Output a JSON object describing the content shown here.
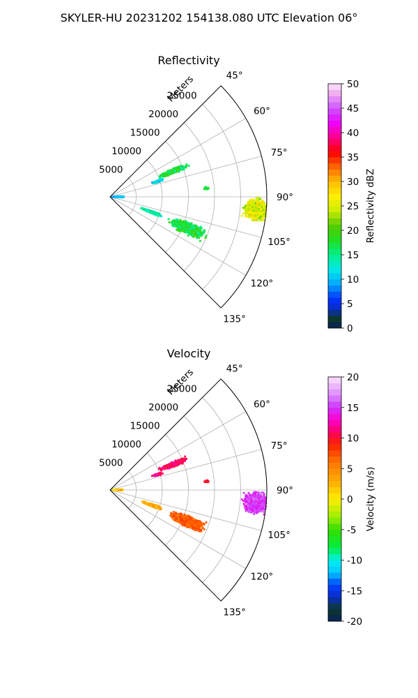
{
  "figure": {
    "title": "SKYLER-HU  20231202  154138.080 UTC Elevation 06°"
  },
  "chart_data": [
    {
      "type": "heatmap",
      "title": "Reflectivity",
      "radial_label": "Meters",
      "radial_ticks": [
        5000,
        10000,
        15000,
        20000,
        25000
      ],
      "radial_range": [
        0,
        30000
      ],
      "azimuth_ticks": [
        "45°",
        "60°",
        "75°",
        "90°",
        "105°",
        "120°",
        "135°"
      ],
      "azimuth_range_deg": [
        45,
        135
      ],
      "grid": true,
      "colorbar": {
        "label": "Reflectivity dBZ",
        "range": [
          0,
          50
        ],
        "ticks": [
          0,
          5,
          10,
          15,
          20,
          25,
          30,
          35,
          40,
          45,
          50
        ],
        "stops": [
          {
            "v": 0,
            "c": "#0b1e5a"
          },
          {
            "v": 2,
            "c": "#0b3a2a"
          },
          {
            "v": 4,
            "c": "#0a2cc9"
          },
          {
            "v": 6,
            "c": "#0033ff"
          },
          {
            "v": 9,
            "c": "#00a8ff"
          },
          {
            "v": 12,
            "c": "#00e8e8"
          },
          {
            "v": 15,
            "c": "#00f08a"
          },
          {
            "v": 18,
            "c": "#22dd22"
          },
          {
            "v": 21,
            "c": "#55cc00"
          },
          {
            "v": 24,
            "c": "#ccee00"
          },
          {
            "v": 27,
            "c": "#ffee00"
          },
          {
            "v": 30,
            "c": "#ffbb00"
          },
          {
            "v": 33,
            "c": "#ff6600"
          },
          {
            "v": 36,
            "c": "#ff0000"
          },
          {
            "v": 39,
            "c": "#ff0088"
          },
          {
            "v": 42,
            "c": "#ee00ff"
          },
          {
            "v": 45,
            "c": "#cc55ff"
          },
          {
            "v": 48,
            "c": "#f0aaf0"
          },
          {
            "v": 50,
            "c": "#fce8fc"
          }
        ]
      },
      "echoes": [
        {
          "az": 68,
          "r": 13000,
          "len": 6500,
          "wid": 5,
          "value": 17,
          "spread": 4
        },
        {
          "az": 72,
          "r": 9500,
          "len": 2500,
          "wid": 3,
          "value": 12,
          "spread": 4
        },
        {
          "az": 95,
          "r": 28000,
          "len": 5500,
          "wid": 10,
          "value": 25,
          "spread": 4
        },
        {
          "az": 112,
          "r": 16000,
          "len": 8000,
          "wid": 9,
          "value": 17,
          "spread": 4
        },
        {
          "az": 110,
          "r": 8500,
          "len": 5000,
          "wid": 4,
          "value": 14,
          "spread": 3
        },
        {
          "az": 90,
          "r": 1500,
          "len": 2500,
          "wid": 8,
          "value": 10,
          "spread": 3
        },
        {
          "az": 85,
          "r": 18500,
          "len": 1200,
          "wid": 2,
          "value": 17,
          "spread": 2
        }
      ]
    },
    {
      "type": "heatmap",
      "title": "Velocity",
      "radial_label": "Meters",
      "radial_ticks": [
        5000,
        10000,
        15000,
        20000,
        25000
      ],
      "radial_range": [
        0,
        30000
      ],
      "azimuth_ticks": [
        "45°",
        "60°",
        "75°",
        "90°",
        "105°",
        "120°",
        "135°"
      ],
      "azimuth_range_deg": [
        45,
        135
      ],
      "grid": true,
      "colorbar": {
        "label": "Velocity (m/s)",
        "range": [
          -20,
          20
        ],
        "ticks": [
          -20,
          -15,
          -10,
          -5,
          0,
          5,
          10,
          15,
          20
        ],
        "stops": [
          {
            "v": -20,
            "c": "#0b1e5a"
          },
          {
            "v": -18,
            "c": "#0b3a2a"
          },
          {
            "v": -16,
            "c": "#0a2cc9"
          },
          {
            "v": -14,
            "c": "#0044ff"
          },
          {
            "v": -12,
            "c": "#00c8ff"
          },
          {
            "v": -10,
            "c": "#00f0f0"
          },
          {
            "v": -8,
            "c": "#00ee44"
          },
          {
            "v": -5,
            "c": "#33dd00"
          },
          {
            "v": -3,
            "c": "#99ee00"
          },
          {
            "v": 0,
            "c": "#ffee00"
          },
          {
            "v": 3,
            "c": "#ffaa00"
          },
          {
            "v": 6,
            "c": "#ff7700"
          },
          {
            "v": 9,
            "c": "#ff2200"
          },
          {
            "v": 11,
            "c": "#ff0066"
          },
          {
            "v": 13,
            "c": "#ff00cc"
          },
          {
            "v": 15,
            "c": "#cc33ff"
          },
          {
            "v": 17,
            "c": "#dd88ff"
          },
          {
            "v": 20,
            "c": "#fbe2fb"
          }
        ]
      },
      "echoes": [
        {
          "az": 68,
          "r": 13000,
          "len": 6500,
          "wid": 5,
          "value": 11,
          "spread": 2
        },
        {
          "az": 72,
          "r": 9500,
          "len": 2500,
          "wid": 3,
          "value": 12,
          "spread": 2
        },
        {
          "az": 95,
          "r": 28000,
          "len": 5500,
          "wid": 10,
          "value": 15,
          "spread": 2
        },
        {
          "az": 112,
          "r": 16000,
          "len": 8000,
          "wid": 9,
          "value": 7,
          "spread": 2
        },
        {
          "az": 110,
          "r": 8500,
          "len": 5000,
          "wid": 4,
          "value": 3,
          "spread": 2
        },
        {
          "az": 90,
          "r": 1500,
          "len": 2500,
          "wid": 8,
          "value": 2,
          "spread": 3
        },
        {
          "az": 85,
          "r": 18500,
          "len": 1200,
          "wid": 2,
          "value": 10,
          "spread": 1
        }
      ]
    }
  ]
}
